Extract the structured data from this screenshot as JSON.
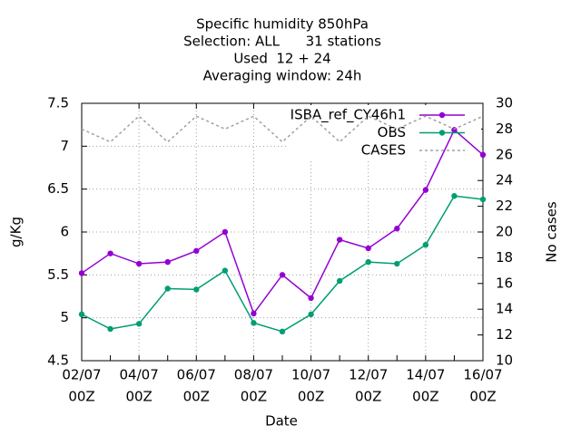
{
  "chart_data": {
    "type": "line",
    "title": [
      "Specific humidity 850hPa",
      "Selection: ALL      31 stations",
      "Used  12 + 24",
      "Averaging window: 24h"
    ],
    "xlabel": "Date",
    "ylabel": "g/Kg",
    "y2label": "No cases",
    "categories": [
      [
        "02/07",
        "00Z"
      ],
      null,
      [
        "04/07",
        "00Z"
      ],
      null,
      [
        "06/07",
        "00Z"
      ],
      null,
      [
        "08/07",
        "00Z"
      ],
      null,
      [
        "10/07",
        "00Z"
      ],
      null,
      [
        "12/07",
        "00Z"
      ],
      null,
      [
        "14/07",
        "00Z"
      ],
      null,
      [
        "16/07",
        "00Z"
      ]
    ],
    "ylim": [
      4.5,
      7.5
    ],
    "yticks": [
      4.5,
      5,
      5.5,
      6,
      6.5,
      7,
      7.5
    ],
    "y2lim": [
      10,
      30
    ],
    "y2ticks": [
      10,
      12,
      14,
      16,
      18,
      20,
      22,
      24,
      26,
      28,
      30
    ],
    "grid": true,
    "legend": "top-right",
    "series": [
      {
        "name": "ISBA_ref_CY46h1",
        "color": "#9400d3",
        "markers": true,
        "values": [
          5.52,
          5.75,
          5.63,
          5.65,
          5.78,
          6.0,
          5.05,
          5.5,
          5.23,
          5.91,
          5.81,
          6.04,
          6.49,
          7.19,
          6.9
        ]
      },
      {
        "name": "OBS",
        "color": "#009e73",
        "markers": true,
        "values": [
          5.04,
          4.87,
          4.93,
          5.34,
          5.33,
          5.55,
          4.94,
          4.84,
          5.04,
          5.43,
          5.65,
          5.63,
          5.85,
          6.42,
          6.38
        ]
      },
      {
        "name": "CASES",
        "color": "#a0a0a0",
        "dashed": true,
        "axis": "y2",
        "values": [
          28,
          27,
          29,
          27,
          29,
          28,
          29,
          27,
          29,
          27,
          29,
          28,
          29,
          28,
          29
        ]
      }
    ]
  }
}
